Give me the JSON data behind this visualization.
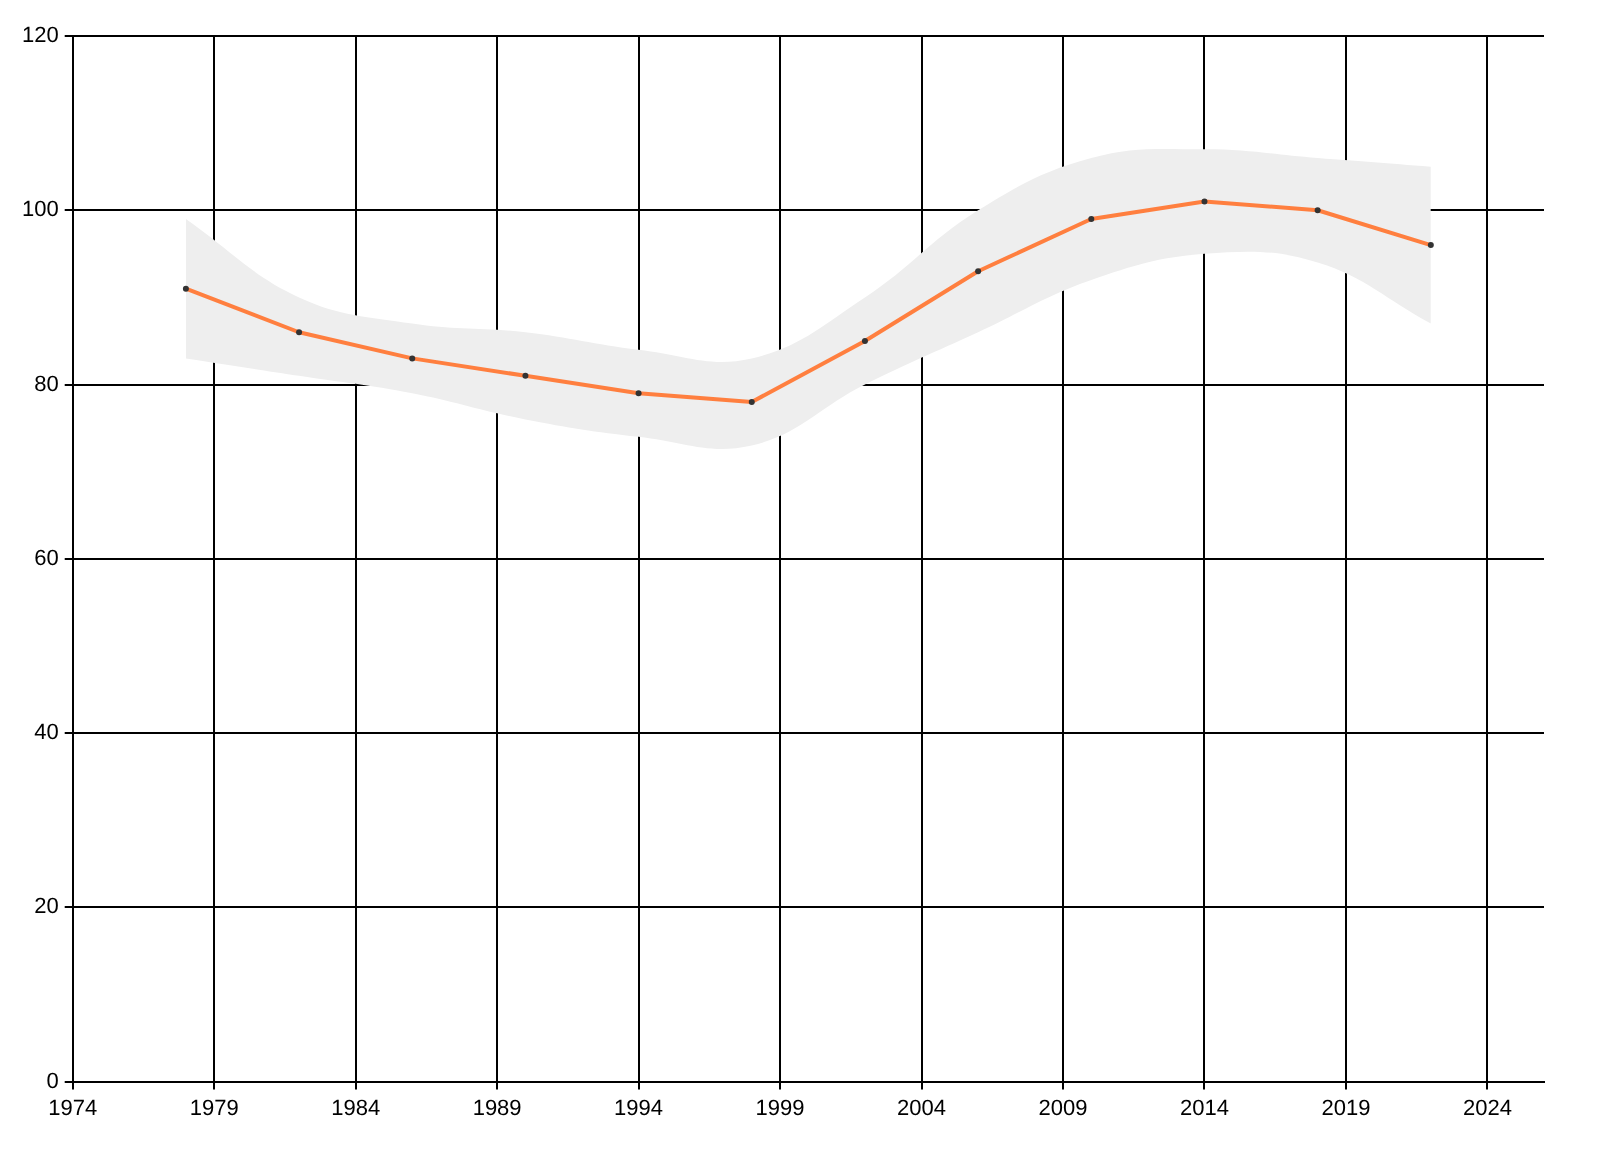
{
  "chart_data": {
    "type": "line",
    "x": [
      1978,
      1982,
      1986,
      1990,
      1994,
      1998,
      2002,
      2006,
      2010,
      2014,
      2018,
      2022
    ],
    "series": [
      {
        "color": "#ff7f3f",
        "values": [
          91,
          86,
          83,
          81,
          79,
          78,
          85,
          93,
          99,
          101,
          100,
          96
        ],
        "lower": [
          83,
          81,
          79,
          76,
          74,
          73,
          80,
          86,
          92,
          95,
          94,
          87
        ],
        "upper": [
          99,
          90,
          87,
          86,
          84,
          83,
          90,
          100,
          106,
          107,
          106,
          105
        ]
      }
    ],
    "xlim": [
      1974,
      2026
    ],
    "xticks": [
      1974,
      1979,
      1984,
      1989,
      1994,
      1999,
      2004,
      2009,
      2014,
      2019,
      2024
    ],
    "ylim": [
      0,
      120
    ],
    "yticks": [
      0,
      20,
      40,
      60,
      80,
      100,
      120
    ],
    "grid": true,
    "legend": false,
    "marker": "circle",
    "line_style": "solid"
  }
}
